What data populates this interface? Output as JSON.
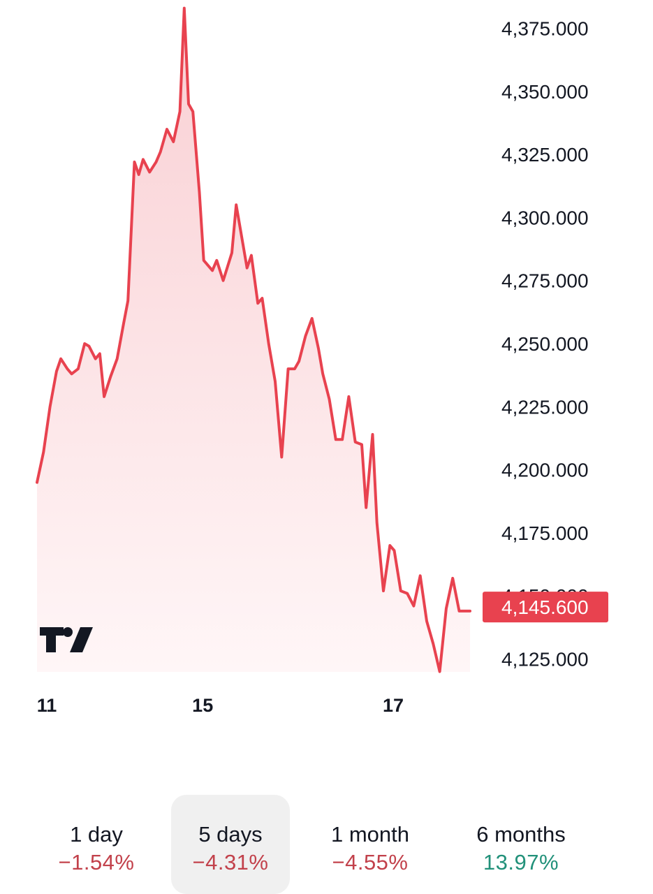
{
  "chart_data": {
    "type": "area",
    "y_axis": {
      "ticks": [
        "4,375.000",
        "4,350.000",
        "4,325.000",
        "4,300.000",
        "4,275.000",
        "4,250.000",
        "4,225.000",
        "4,200.000",
        "4,175.000",
        "4,150.000",
        "4,125.000"
      ],
      "ylim": [
        4125,
        4375
      ],
      "position": "right"
    },
    "x_axis": {
      "ticks": [
        {
          "label": "11",
          "x": 0
        },
        {
          "label": "15",
          "x": 36
        },
        {
          "label": "17",
          "x": 80
        }
      ],
      "xlim": [
        0,
        100
      ]
    },
    "series": [
      {
        "color": "#e8424f",
        "fill_top": "#f9cfd3",
        "fill_bottom": "#fff6f7",
        "x": [
          0,
          1.5,
          3,
          4.5,
          5.5,
          7,
          8,
          9.5,
          11,
          12,
          13.5,
          14.5,
          15.5,
          17,
          18.5,
          20,
          21,
          22.5,
          23.5,
          24.5,
          26,
          27.5,
          28.5,
          30,
          31.5,
          33,
          34,
          35,
          36,
          37.5,
          38.5,
          40.5,
          41.5,
          43,
          45,
          46,
          47.5,
          48.5,
          49.5,
          51,
          52,
          53.5,
          55,
          56.5,
          58,
          59.5,
          60.5,
          62,
          63.5,
          65,
          66,
          67.5,
          69,
          70.5,
          72,
          73.5,
          75,
          76,
          77.5,
          78.5,
          80,
          81.5,
          82.5,
          84,
          85.5,
          87,
          88.5,
          90,
          91.5,
          93,
          94.5,
          96,
          97.5,
          99,
          100
        ],
        "y": [
          4195,
          4207,
          4225,
          4239,
          4244,
          4240,
          4238,
          4240,
          4250,
          4249,
          4244,
          4246,
          4229,
          4237,
          4244,
          4258,
          4267,
          4322,
          4317,
          4323,
          4318,
          4322,
          4326,
          4335,
          4330,
          4342,
          4383,
          4345,
          4342,
          4310,
          4283,
          4279,
          4283,
          4275,
          4286,
          4305,
          4290,
          4280,
          4285,
          4266,
          4268,
          4250,
          4235,
          4205,
          4240,
          4240,
          4243,
          4253,
          4260,
          4248,
          4238,
          4228,
          4212,
          4212,
          4229,
          4211,
          4210,
          4185,
          4214,
          4179,
          4152,
          4170,
          4168,
          4152,
          4151,
          4146,
          4158,
          4140,
          4131,
          4120,
          4145,
          4157,
          4144,
          4144,
          4144
        ]
      }
    ],
    "last_price": "4,145.600",
    "last_value": 4145.6,
    "logo": "tradingview-logo",
    "grid": false,
    "legend": "none"
  },
  "periods": [
    {
      "label": "1 day",
      "value": "−1.54%",
      "color": "#c2414b",
      "active": false
    },
    {
      "label": "5 days",
      "value": "−4.31%",
      "color": "#c2414b",
      "active": true
    },
    {
      "label": "1 month",
      "value": "−4.55%",
      "color": "#c2414b",
      "active": false
    },
    {
      "label": "6 months",
      "value": "13.97%",
      "color": "#22917a",
      "active": false
    }
  ]
}
